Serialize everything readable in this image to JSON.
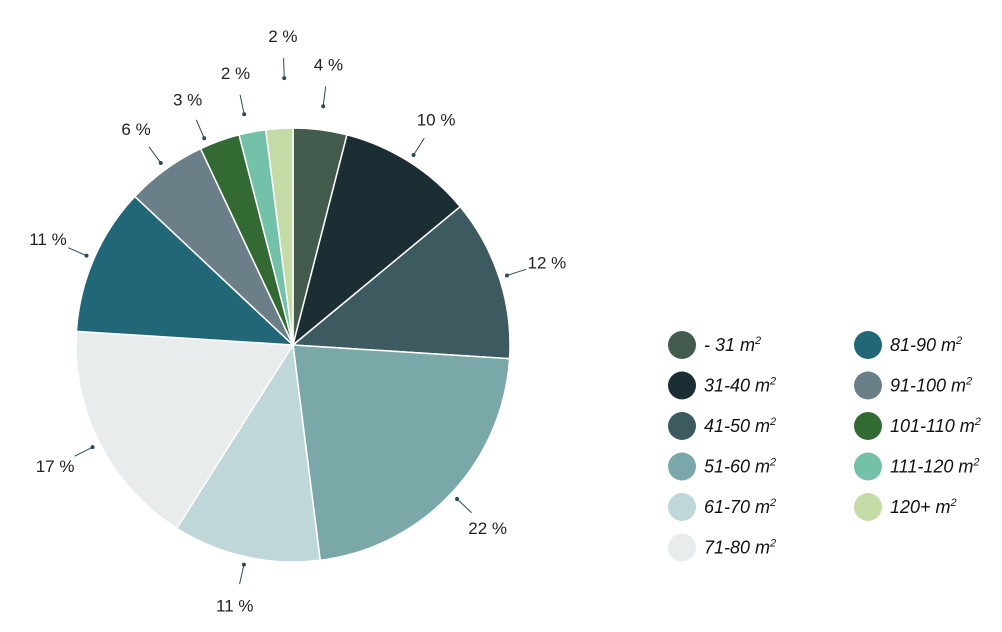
{
  "chart_data": {
    "type": "pie",
    "legend_position": "right",
    "slices": [
      {
        "legend": "- 31 m",
        "sup": "2",
        "value": 4,
        "label": "4 %",
        "color": "#435b4c"
      },
      {
        "legend": "31-40 m",
        "sup": "2",
        "value": 10,
        "label": "10 %",
        "color": "#1b2e33"
      },
      {
        "legend": "41-50 m",
        "sup": "2",
        "value": 12,
        "label": "12 %",
        "color": "#3c5a5f"
      },
      {
        "legend": "51-60 m",
        "sup": "2",
        "value": 22,
        "label": "22 %",
        "color": "#7aa8a8"
      },
      {
        "legend": "61-70 m",
        "sup": "2",
        "value": 11,
        "label": "11 %",
        "color": "#bfd7d9"
      },
      {
        "legend": "71-80 m",
        "sup": "2",
        "value": 17,
        "label": "17 %",
        "color": "#e9eced"
      },
      {
        "legend": "81-90 m",
        "sup": "2",
        "value": 11,
        "label": "11 %",
        "color": "#226777"
      },
      {
        "legend": "91-100 m",
        "sup": "2",
        "value": 6,
        "label": "6 %",
        "color": "#6a7f88"
      },
      {
        "legend": "101-110 m",
        "sup": "2",
        "value": 3,
        "label": "3 %",
        "color": "#336a33"
      },
      {
        "legend": "111-120 m",
        "sup": "2",
        "value": 2,
        "label": "2 %",
        "color": "#74c1a9"
      },
      {
        "legend": "120+ m",
        "sup": "2",
        "value": 2,
        "label": "2 %",
        "color": "#c4dba6"
      }
    ]
  }
}
